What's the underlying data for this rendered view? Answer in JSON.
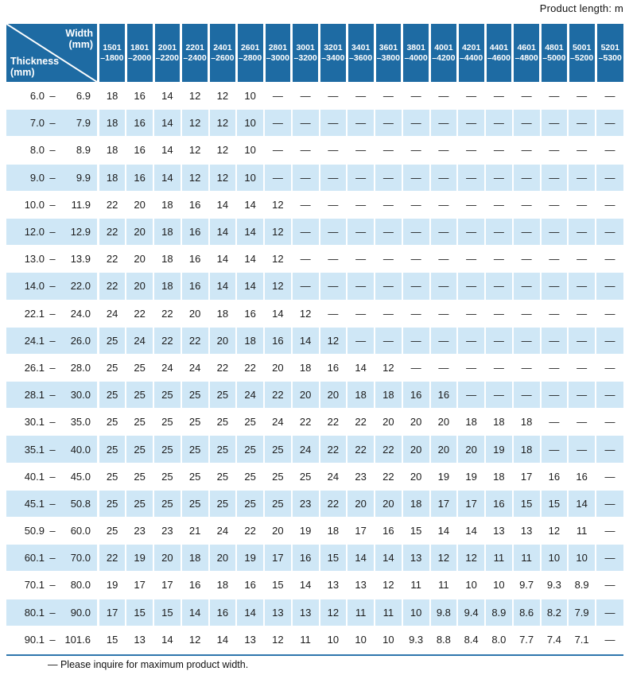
{
  "top_note": "Product length: m",
  "corner": {
    "width_label": "Width",
    "width_unit": "(mm)",
    "thickness_label": "Thickness",
    "thickness_unit": "(mm)"
  },
  "range_separator": "–",
  "footnote": "— Please inquire for maximum product width.",
  "colors": {
    "header_blue": "#1e6ba3",
    "band_blue": "#cfe7f6",
    "rule_blue": "#2e76ad",
    "text": "#1b1b1b"
  },
  "table": {
    "columns": [
      {
        "line1": "1501",
        "line2": "–1800"
      },
      {
        "line1": "1801",
        "line2": "–2000"
      },
      {
        "line1": "2001",
        "line2": "–2200"
      },
      {
        "line1": "2201",
        "line2": "–2400"
      },
      {
        "line1": "2401",
        "line2": "–2600"
      },
      {
        "line1": "2601",
        "line2": "–2800"
      },
      {
        "line1": "2801",
        "line2": "–3000"
      },
      {
        "line1": "3001",
        "line2": "–3200"
      },
      {
        "line1": "3201",
        "line2": "–3400"
      },
      {
        "line1": "3401",
        "line2": "–3600"
      },
      {
        "line1": "3601",
        "line2": "–3800"
      },
      {
        "line1": "3801",
        "line2": "–4000"
      },
      {
        "line1": "4001",
        "line2": "–4200"
      },
      {
        "line1": "4201",
        "line2": "–4400"
      },
      {
        "line1": "4401",
        "line2": "–4600"
      },
      {
        "line1": "4601",
        "line2": "–4800"
      },
      {
        "line1": "4801",
        "line2": "–5000"
      },
      {
        "line1": "5001",
        "line2": "–5200"
      },
      {
        "line1": "5201",
        "line2": "–5300"
      }
    ],
    "rows": [
      {
        "lo": "6.0",
        "hi": "6.9",
        "values": [
          "18",
          "16",
          "14",
          "12",
          "12",
          "10",
          "—",
          "—",
          "—",
          "—",
          "—",
          "—",
          "—",
          "—",
          "—",
          "—",
          "—",
          "—",
          "—"
        ]
      },
      {
        "lo": "7.0",
        "hi": "7.9",
        "values": [
          "18",
          "16",
          "14",
          "12",
          "12",
          "10",
          "—",
          "—",
          "—",
          "—",
          "—",
          "—",
          "—",
          "—",
          "—",
          "—",
          "—",
          "—",
          "—"
        ]
      },
      {
        "lo": "8.0",
        "hi": "8.9",
        "values": [
          "18",
          "16",
          "14",
          "12",
          "12",
          "10",
          "—",
          "—",
          "—",
          "—",
          "—",
          "—",
          "—",
          "—",
          "—",
          "—",
          "—",
          "—",
          "—"
        ]
      },
      {
        "lo": "9.0",
        "hi": "9.9",
        "values": [
          "18",
          "16",
          "14",
          "12",
          "12",
          "10",
          "—",
          "—",
          "—",
          "—",
          "—",
          "—",
          "—",
          "—",
          "—",
          "—",
          "—",
          "—",
          "—"
        ]
      },
      {
        "lo": "10.0",
        "hi": "11.9",
        "values": [
          "22",
          "20",
          "18",
          "16",
          "14",
          "14",
          "12",
          "—",
          "—",
          "—",
          "—",
          "—",
          "—",
          "—",
          "—",
          "—",
          "—",
          "—",
          "—"
        ]
      },
      {
        "lo": "12.0",
        "hi": "12.9",
        "values": [
          "22",
          "20",
          "18",
          "16",
          "14",
          "14",
          "12",
          "—",
          "—",
          "—",
          "—",
          "—",
          "—",
          "—",
          "—",
          "—",
          "—",
          "—",
          "—"
        ]
      },
      {
        "lo": "13.0",
        "hi": "13.9",
        "values": [
          "22",
          "20",
          "18",
          "16",
          "14",
          "14",
          "12",
          "—",
          "—",
          "—",
          "—",
          "—",
          "—",
          "—",
          "—",
          "—",
          "—",
          "—",
          "—"
        ]
      },
      {
        "lo": "14.0",
        "hi": "22.0",
        "values": [
          "22",
          "20",
          "18",
          "16",
          "14",
          "14",
          "12",
          "—",
          "—",
          "—",
          "—",
          "—",
          "—",
          "—",
          "—",
          "—",
          "—",
          "—",
          "—"
        ]
      },
      {
        "lo": "22.1",
        "hi": "24.0",
        "values": [
          "24",
          "22",
          "22",
          "20",
          "18",
          "16",
          "14",
          "12",
          "—",
          "—",
          "—",
          "—",
          "—",
          "—",
          "—",
          "—",
          "—",
          "—",
          "—"
        ]
      },
      {
        "lo": "24.1",
        "hi": "26.0",
        "values": [
          "25",
          "24",
          "22",
          "22",
          "20",
          "18",
          "16",
          "14",
          "12",
          "—",
          "—",
          "—",
          "—",
          "—",
          "—",
          "—",
          "—",
          "—",
          "—"
        ]
      },
      {
        "lo": "26.1",
        "hi": "28.0",
        "values": [
          "25",
          "25",
          "24",
          "24",
          "22",
          "22",
          "20",
          "18",
          "16",
          "14",
          "12",
          "—",
          "—",
          "—",
          "—",
          "—",
          "—",
          "—",
          "—"
        ]
      },
      {
        "lo": "28.1",
        "hi": "30.0",
        "values": [
          "25",
          "25",
          "25",
          "25",
          "25",
          "24",
          "22",
          "20",
          "20",
          "18",
          "18",
          "16",
          "16",
          "—",
          "—",
          "—",
          "—",
          "—",
          "—"
        ]
      },
      {
        "lo": "30.1",
        "hi": "35.0",
        "values": [
          "25",
          "25",
          "25",
          "25",
          "25",
          "25",
          "24",
          "22",
          "22",
          "22",
          "20",
          "20",
          "20",
          "18",
          "18",
          "18",
          "—",
          "—",
          "—"
        ]
      },
      {
        "lo": "35.1",
        "hi": "40.0",
        "values": [
          "25",
          "25",
          "25",
          "25",
          "25",
          "25",
          "25",
          "24",
          "22",
          "22",
          "22",
          "20",
          "20",
          "20",
          "19",
          "18",
          "—",
          "—",
          "—"
        ]
      },
      {
        "lo": "40.1",
        "hi": "45.0",
        "values": [
          "25",
          "25",
          "25",
          "25",
          "25",
          "25",
          "25",
          "25",
          "24",
          "23",
          "22",
          "20",
          "19",
          "19",
          "18",
          "17",
          "16",
          "16",
          "—"
        ]
      },
      {
        "lo": "45.1",
        "hi": "50.8",
        "values": [
          "25",
          "25",
          "25",
          "25",
          "25",
          "25",
          "25",
          "23",
          "22",
          "20",
          "20",
          "18",
          "17",
          "17",
          "16",
          "15",
          "15",
          "14",
          "—"
        ]
      },
      {
        "lo": "50.9",
        "hi": "60.0",
        "values": [
          "25",
          "23",
          "23",
          "21",
          "24",
          "22",
          "20",
          "19",
          "18",
          "17",
          "16",
          "15",
          "14",
          "14",
          "13",
          "13",
          "12",
          "11",
          "—"
        ]
      },
      {
        "lo": "60.1",
        "hi": "70.0",
        "values": [
          "22",
          "19",
          "20",
          "18",
          "20",
          "19",
          "17",
          "16",
          "15",
          "14",
          "14",
          "13",
          "12",
          "12",
          "11",
          "11",
          "10",
          "10",
          "—"
        ]
      },
      {
        "lo": "70.1",
        "hi": "80.0",
        "values": [
          "19",
          "17",
          "17",
          "16",
          "18",
          "16",
          "15",
          "14",
          "13",
          "13",
          "12",
          "11",
          "11",
          "10",
          "10",
          "9.7",
          "9.3",
          "8.9",
          "—"
        ]
      },
      {
        "lo": "80.1",
        "hi": "90.0",
        "values": [
          "17",
          "15",
          "15",
          "14",
          "16",
          "14",
          "13",
          "13",
          "12",
          "11",
          "11",
          "10",
          "9.8",
          "9.4",
          "8.9",
          "8.6",
          "8.2",
          "7.9",
          "—"
        ]
      },
      {
        "lo": "90.1",
        "hi": "101.6",
        "values": [
          "15",
          "13",
          "14",
          "12",
          "14",
          "13",
          "12",
          "11",
          "10",
          "10",
          "10",
          "9.3",
          "8.8",
          "8.4",
          "8.0",
          "7.7",
          "7.4",
          "7.1",
          "—"
        ]
      }
    ]
  }
}
